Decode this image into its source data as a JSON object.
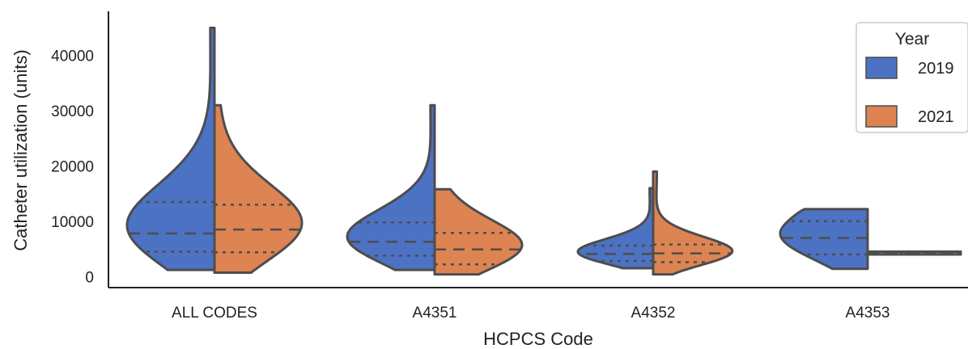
{
  "chart_data": {
    "type": "violin",
    "xlabel": "HCPCS Code",
    "ylabel": "Catheter utilization (units)",
    "yticks": [
      0,
      10000,
      20000,
      30000,
      40000
    ],
    "ylim": [
      -2000,
      48000
    ],
    "categories": [
      "ALL CODES",
      "A4351",
      "A4352",
      "A4353"
    ],
    "legend": {
      "title": "Year",
      "position": "top-right"
    },
    "colors": {
      "2019": "#4c72c4",
      "2021": "#dd8452",
      "outline": "#4d4d4d"
    },
    "series": [
      {
        "name": "2019",
        "side": "left",
        "violins": [
          {
            "category": "ALL CODES",
            "min": 1200,
            "max": 45000,
            "q1": 4500,
            "median": 7800,
            "q3": 13500
          },
          {
            "category": "A4351",
            "min": 1200,
            "max": 31000,
            "q1": 3800,
            "median": 6300,
            "q3": 9800
          },
          {
            "category": "A4352",
            "min": 1500,
            "max": 16000,
            "q1": 2800,
            "median": 4100,
            "q3": 5600
          },
          {
            "category": "A4353",
            "min": 1400,
            "max": 12200,
            "q1": 4000,
            "median": 7000,
            "q3": 10000
          }
        ]
      },
      {
        "name": "2021",
        "side": "right",
        "violins": [
          {
            "category": "ALL CODES",
            "min": 700,
            "max": 31000,
            "q1": 4400,
            "median": 8500,
            "q3": 13000
          },
          {
            "category": "A4351",
            "min": 400,
            "max": 15800,
            "q1": 2200,
            "median": 4900,
            "q3": 7900
          },
          {
            "category": "A4352",
            "min": 400,
            "max": 19000,
            "q1": 2600,
            "median": 4200,
            "q3": 5800
          },
          {
            "category": "A4353",
            "min": 4000,
            "max": 4500,
            "q1": 4150,
            "median": 4250,
            "q3": 4350
          }
        ]
      }
    ]
  }
}
